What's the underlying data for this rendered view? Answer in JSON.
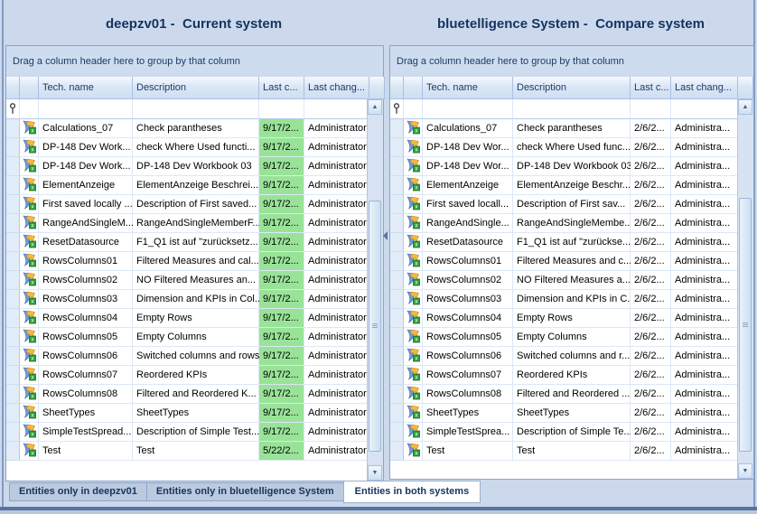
{
  "window": {
    "tabs": [
      {
        "label": "Entities only in deepzv01",
        "active": false
      },
      {
        "label": "Entities only in bluetelligence System",
        "active": false
      },
      {
        "label": "Entities in both systems",
        "active": true
      }
    ]
  },
  "icons": {
    "row_icon": "workbook-icon",
    "filter_icon": "pin-icon",
    "scroll_up": "up-arrow-icon",
    "scroll_down": "down-arrow-icon",
    "splitter": "left-arrow-icon"
  },
  "colors": {
    "left_date_highlight": "#99e399",
    "title_text": "#15335f",
    "tab_active_bg": "#ffffff"
  },
  "left_panel": {
    "title": "deepzv01 -  Current system",
    "group_hint": "Drag a column header here to group by that column",
    "columns": {
      "tech": "Tech. name",
      "desc": "Description",
      "lastc": "Last c...",
      "lastchang": "Last chang..."
    },
    "date_bg": "#99e399",
    "rows": [
      {
        "tech": "Calculations_07",
        "desc": "Check parantheses",
        "date": "9/17/2...",
        "user": "Administrator"
      },
      {
        "tech": "DP-148 Dev Work...",
        "desc": "check Where Used functi...",
        "date": "9/17/2...",
        "user": "Administrator"
      },
      {
        "tech": "DP-148 Dev Work...",
        "desc": "DP-148 Dev Workbook 03",
        "date": "9/17/2...",
        "user": "Administrator"
      },
      {
        "tech": "ElementAnzeige",
        "desc": "ElementAnzeige Beschrei...",
        "date": "9/17/2...",
        "user": "Administrator"
      },
      {
        "tech": "First saved locally ...",
        "desc": "Description of First saved...",
        "date": "9/17/2...",
        "user": "Administrator"
      },
      {
        "tech": "RangeAndSingleM...",
        "desc": "RangeAndSingleMemberF...",
        "date": "9/17/2...",
        "user": "Administrator"
      },
      {
        "tech": "ResetDatasource",
        "desc": "F1_Q1 ist auf \"zurücksetz...",
        "date": "9/17/2...",
        "user": "Administrator"
      },
      {
        "tech": "RowsColumns01",
        "desc": "Filtered Measures and cal...",
        "date": "9/17/2...",
        "user": "Administrator"
      },
      {
        "tech": "RowsColumns02",
        "desc": "NO Filtered Measures an...",
        "date": "9/17/2...",
        "user": "Administrator"
      },
      {
        "tech": "RowsColumns03",
        "desc": "Dimension and KPIs in Col...",
        "date": "9/17/2...",
        "user": "Administrator"
      },
      {
        "tech": "RowsColumns04",
        "desc": "Empty Rows",
        "date": "9/17/2...",
        "user": "Administrator"
      },
      {
        "tech": "RowsColumns05",
        "desc": "Empty Columns",
        "date": "9/17/2...",
        "user": "Administrator"
      },
      {
        "tech": "RowsColumns06",
        "desc": "Switched columns and rows",
        "date": "9/17/2...",
        "user": "Administrator"
      },
      {
        "tech": "RowsColumns07",
        "desc": "Reordered KPIs",
        "date": "9/17/2...",
        "user": "Administrator"
      },
      {
        "tech": "RowsColumns08",
        "desc": "Filtered and Reordered K...",
        "date": "9/17/2...",
        "user": "Administrator"
      },
      {
        "tech": "SheetTypes",
        "desc": "SheetTypes",
        "date": "9/17/2...",
        "user": "Administrator"
      },
      {
        "tech": "SimpleTestSpread...",
        "desc": "Description of Simple Test...",
        "date": "9/17/2...",
        "user": "Administrator"
      },
      {
        "tech": "Test",
        "desc": "Test",
        "date": "5/22/2...",
        "user": "Administrator"
      }
    ]
  },
  "right_panel": {
    "title": "bluetelligence System -  Compare system",
    "group_hint": "Drag a column header here to group by that column",
    "columns": {
      "tech": "Tech. name",
      "desc": "Description",
      "lastc": "Last c...",
      "lastchang": "Last chang..."
    },
    "date_bg": "",
    "rows": [
      {
        "tech": "Calculations_07",
        "desc": "Check parantheses",
        "date": "2/6/2...",
        "user": "Administra..."
      },
      {
        "tech": "DP-148 Dev Wor...",
        "desc": "check Where Used func...",
        "date": "2/6/2...",
        "user": "Administra..."
      },
      {
        "tech": "DP-148 Dev Wor...",
        "desc": "DP-148 Dev Workbook 03",
        "date": "2/6/2...",
        "user": "Administra..."
      },
      {
        "tech": "ElementAnzeige",
        "desc": "ElementAnzeige Beschr...",
        "date": "2/6/2...",
        "user": "Administra..."
      },
      {
        "tech": "First saved locall...",
        "desc": "Description of First sav...",
        "date": "2/6/2...",
        "user": "Administra..."
      },
      {
        "tech": "RangeAndSingle...",
        "desc": "RangeAndSingleMembe...",
        "date": "2/6/2...",
        "user": "Administra..."
      },
      {
        "tech": "ResetDatasource",
        "desc": "F1_Q1 ist auf \"zurückse...",
        "date": "2/6/2...",
        "user": "Administra..."
      },
      {
        "tech": "RowsColumns01",
        "desc": "Filtered Measures and c...",
        "date": "2/6/2...",
        "user": "Administra..."
      },
      {
        "tech": "RowsColumns02",
        "desc": "NO Filtered Measures a...",
        "date": "2/6/2...",
        "user": "Administra..."
      },
      {
        "tech": "RowsColumns03",
        "desc": "Dimension and KPIs in C...",
        "date": "2/6/2...",
        "user": "Administra..."
      },
      {
        "tech": "RowsColumns04",
        "desc": "Empty Rows",
        "date": "2/6/2...",
        "user": "Administra..."
      },
      {
        "tech": "RowsColumns05",
        "desc": "Empty Columns",
        "date": "2/6/2...",
        "user": "Administra..."
      },
      {
        "tech": "RowsColumns06",
        "desc": "Switched columns and r...",
        "date": "2/6/2...",
        "user": "Administra..."
      },
      {
        "tech": "RowsColumns07",
        "desc": "Reordered KPIs",
        "date": "2/6/2...",
        "user": "Administra..."
      },
      {
        "tech": "RowsColumns08",
        "desc": "Filtered and Reordered ...",
        "date": "2/6/2...",
        "user": "Administra..."
      },
      {
        "tech": "SheetTypes",
        "desc": "SheetTypes",
        "date": "2/6/2...",
        "user": "Administra..."
      },
      {
        "tech": "SimpleTestSprea...",
        "desc": "Description of Simple Te...",
        "date": "2/6/2...",
        "user": "Administra..."
      },
      {
        "tech": "Test",
        "desc": "Test",
        "date": "2/6/2...",
        "user": "Administra..."
      }
    ]
  }
}
